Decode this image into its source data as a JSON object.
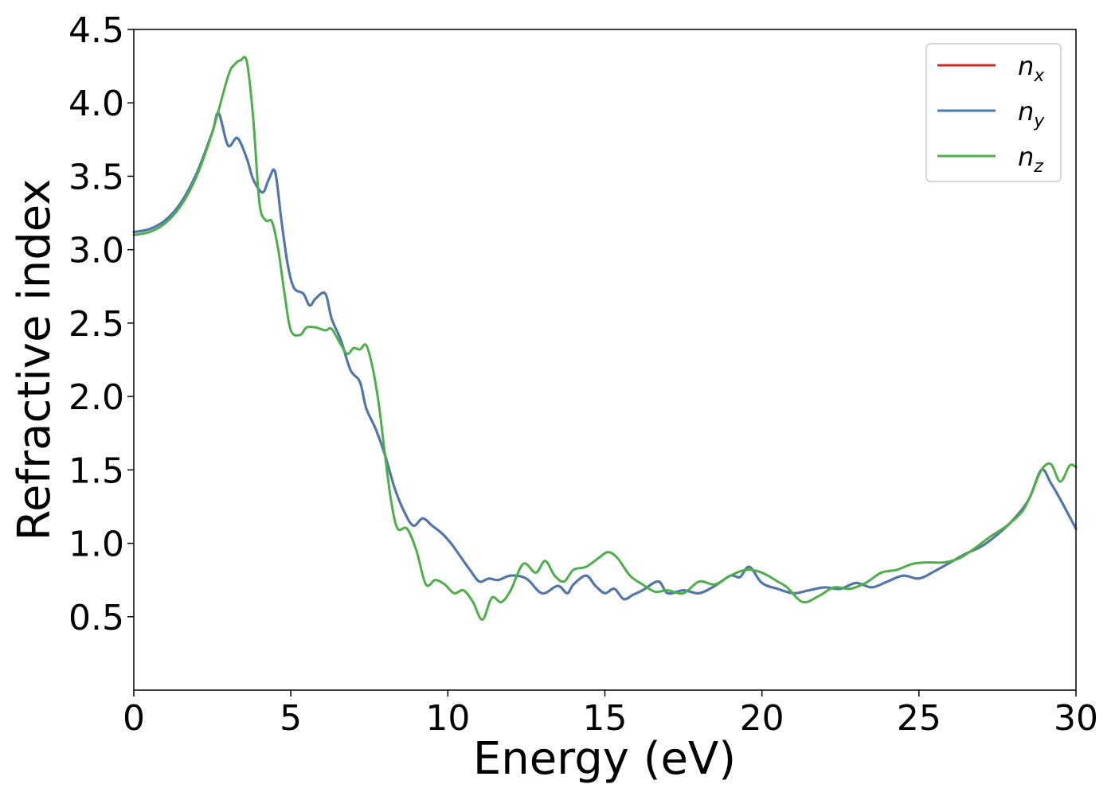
{
  "chart_data": {
    "type": "line",
    "xlabel": "Energy (eV)",
    "ylabel": "Refractive index",
    "xlim": [
      0,
      30
    ],
    "ylim": [
      0,
      4.5
    ],
    "xticks": [
      0,
      5,
      10,
      15,
      20,
      25,
      30
    ],
    "yticks": [
      0.5,
      1.0,
      1.5,
      2.0,
      2.5,
      3.0,
      3.5,
      4.0,
      4.5
    ],
    "xtick_labels": [
      "0",
      "5",
      "10",
      "15",
      "20",
      "25",
      "30"
    ],
    "ytick_labels": [
      "0.5",
      "1.0",
      "1.5",
      "2.0",
      "2.5",
      "3.0",
      "3.5",
      "4.0",
      "4.5"
    ],
    "grid": false,
    "legend_position": "top-right",
    "series": [
      {
        "name": "n",
        "subscript": "x",
        "color": "#d62728",
        "x": [
          0,
          0.5,
          1,
          1.5,
          2,
          2.5,
          2.7,
          3,
          3.3,
          3.6,
          3.8,
          4.1,
          4.3,
          4.5,
          4.7,
          4.9,
          5.1,
          5.4,
          5.6,
          5.8,
          6.1,
          6.3,
          6.6,
          6.9,
          7.2,
          7.4,
          7.7,
          8,
          8.3,
          8.6,
          8.9,
          9.2,
          9.5,
          9.8,
          10.1,
          10.4,
          10.7,
          11,
          11.3,
          11.6,
          12,
          12.5,
          13,
          13.5,
          13.8,
          14,
          14.4,
          14.7,
          15,
          15.3,
          15.6,
          15.9,
          16.2,
          16.7,
          17,
          17.5,
          18,
          18.5,
          19,
          19.3,
          19.6,
          20,
          20.5,
          21,
          21.5,
          22,
          22.5,
          23,
          23.5,
          24,
          24.5,
          25,
          25.5,
          26,
          26.5,
          27,
          27.5,
          28,
          28.5,
          28.9,
          29.2,
          29.5,
          30
        ],
        "y": [
          3.12,
          3.14,
          3.2,
          3.32,
          3.52,
          3.8,
          3.93,
          3.71,
          3.76,
          3.62,
          3.48,
          3.39,
          3.48,
          3.53,
          3.2,
          2.9,
          2.74,
          2.7,
          2.62,
          2.67,
          2.7,
          2.53,
          2.38,
          2.18,
          2.1,
          1.92,
          1.78,
          1.6,
          1.38,
          1.22,
          1.12,
          1.17,
          1.12,
          1.07,
          1.0,
          0.91,
          0.82,
          0.74,
          0.76,
          0.75,
          0.78,
          0.76,
          0.66,
          0.71,
          0.66,
          0.72,
          0.78,
          0.71,
          0.66,
          0.69,
          0.62,
          0.65,
          0.68,
          0.74,
          0.66,
          0.68,
          0.66,
          0.71,
          0.78,
          0.77,
          0.84,
          0.73,
          0.69,
          0.66,
          0.68,
          0.7,
          0.69,
          0.73,
          0.7,
          0.74,
          0.78,
          0.76,
          0.81,
          0.87,
          0.93,
          0.98,
          1.06,
          1.16,
          1.3,
          1.5,
          1.41,
          1.3,
          1.1
        ]
      },
      {
        "name": "n",
        "subscript": "y",
        "color": "#4a78b0",
        "x": [
          0,
          0.5,
          1,
          1.5,
          2,
          2.5,
          2.7,
          3,
          3.3,
          3.6,
          3.8,
          4.1,
          4.3,
          4.5,
          4.7,
          4.9,
          5.1,
          5.4,
          5.6,
          5.8,
          6.1,
          6.3,
          6.6,
          6.9,
          7.2,
          7.4,
          7.7,
          8,
          8.3,
          8.6,
          8.9,
          9.2,
          9.5,
          9.8,
          10.1,
          10.4,
          10.7,
          11,
          11.3,
          11.6,
          12,
          12.5,
          13,
          13.5,
          13.8,
          14,
          14.4,
          14.7,
          15,
          15.3,
          15.6,
          15.9,
          16.2,
          16.7,
          17,
          17.5,
          18,
          18.5,
          19,
          19.3,
          19.6,
          20,
          20.5,
          21,
          21.5,
          22,
          22.5,
          23,
          23.5,
          24,
          24.5,
          25,
          25.5,
          26,
          26.5,
          27,
          27.5,
          28,
          28.5,
          28.9,
          29.2,
          29.5,
          30
        ],
        "y": [
          3.12,
          3.14,
          3.2,
          3.32,
          3.52,
          3.8,
          3.93,
          3.71,
          3.76,
          3.62,
          3.48,
          3.39,
          3.48,
          3.53,
          3.2,
          2.9,
          2.74,
          2.7,
          2.62,
          2.67,
          2.7,
          2.53,
          2.38,
          2.18,
          2.1,
          1.92,
          1.78,
          1.6,
          1.38,
          1.22,
          1.12,
          1.17,
          1.12,
          1.07,
          1.0,
          0.91,
          0.82,
          0.74,
          0.76,
          0.75,
          0.78,
          0.76,
          0.66,
          0.71,
          0.66,
          0.72,
          0.78,
          0.71,
          0.66,
          0.69,
          0.62,
          0.65,
          0.68,
          0.74,
          0.66,
          0.68,
          0.66,
          0.71,
          0.78,
          0.77,
          0.84,
          0.73,
          0.69,
          0.66,
          0.68,
          0.7,
          0.69,
          0.73,
          0.7,
          0.74,
          0.78,
          0.76,
          0.81,
          0.87,
          0.93,
          0.98,
          1.06,
          1.16,
          1.3,
          1.5,
          1.41,
          1.3,
          1.1
        ]
      },
      {
        "name": "n",
        "subscript": "z",
        "color": "#4daf4a",
        "x": [
          0,
          0.5,
          1,
          1.5,
          2,
          2.5,
          3,
          3.2,
          3.4,
          3.6,
          3.8,
          4,
          4.2,
          4.4,
          4.6,
          4.8,
          5,
          5.3,
          5.5,
          5.8,
          6.1,
          6.3,
          6.6,
          6.8,
          7,
          7.2,
          7.4,
          7.6,
          7.8,
          8,
          8.2,
          8.4,
          8.7,
          9,
          9.3,
          9.6,
          9.9,
          10.2,
          10.5,
          10.8,
          11.1,
          11.4,
          11.7,
          12,
          12.4,
          12.8,
          13.1,
          13.4,
          13.7,
          14,
          14.4,
          14.8,
          15.1,
          15.4,
          15.8,
          16.2,
          16.6,
          17,
          17.5,
          18,
          18.5,
          19,
          19.5,
          20,
          20.5,
          20.8,
          21.3,
          21.8,
          22.3,
          22.8,
          23.3,
          23.8,
          24.3,
          24.8,
          25.3,
          25.8,
          26.3,
          26.8,
          27.3,
          27.8,
          28.3,
          28.6,
          28.9,
          29.2,
          29.5,
          29.8,
          30
        ],
        "y": [
          3.1,
          3.12,
          3.18,
          3.3,
          3.5,
          3.8,
          4.18,
          4.26,
          4.29,
          4.28,
          3.9,
          3.32,
          3.2,
          3.19,
          3.0,
          2.7,
          2.45,
          2.42,
          2.47,
          2.47,
          2.45,
          2.46,
          2.35,
          2.29,
          2.33,
          2.32,
          2.35,
          2.2,
          1.95,
          1.6,
          1.28,
          1.1,
          1.1,
          0.95,
          0.72,
          0.75,
          0.72,
          0.66,
          0.68,
          0.6,
          0.48,
          0.63,
          0.6,
          0.68,
          0.86,
          0.8,
          0.88,
          0.78,
          0.74,
          0.82,
          0.84,
          0.9,
          0.94,
          0.9,
          0.78,
          0.72,
          0.67,
          0.68,
          0.66,
          0.74,
          0.72,
          0.78,
          0.82,
          0.8,
          0.74,
          0.7,
          0.6,
          0.64,
          0.7,
          0.69,
          0.73,
          0.8,
          0.82,
          0.86,
          0.87,
          0.87,
          0.9,
          0.97,
          1.05,
          1.12,
          1.22,
          1.35,
          1.5,
          1.54,
          1.42,
          1.53,
          1.52
        ]
      }
    ]
  }
}
